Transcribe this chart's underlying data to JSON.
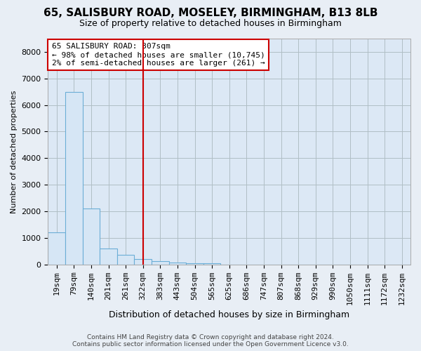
{
  "title1": "65, SALISBURY ROAD, MOSELEY, BIRMINGHAM, B13 8LB",
  "title2": "Size of property relative to detached houses in Birmingham",
  "xlabel": "Distribution of detached houses by size in Birmingham",
  "ylabel": "Number of detached properties",
  "footer1": "Contains HM Land Registry data © Crown copyright and database right 2024.",
  "footer2": "Contains public sector information licensed under the Open Government Licence v3.0.",
  "annotation_line1": "65 SALISBURY ROAD: 307sqm",
  "annotation_line2": "← 98% of detached houses are smaller (10,745)",
  "annotation_line3": "2% of semi-detached houses are larger (261) →",
  "vline_x_index": 5,
  "vline_color": "#cc0000",
  "bar_fill_color": "#d6e6f5",
  "bar_edge_color": "#6baed6",
  "categories": [
    "19sqm",
    "79sqm",
    "140sqm",
    "201sqm",
    "261sqm",
    "322sqm",
    "383sqm",
    "443sqm",
    "504sqm",
    "565sqm",
    "625sqm",
    "686sqm",
    "747sqm",
    "807sqm",
    "868sqm",
    "929sqm",
    "990sqm",
    "1050sqm",
    "1111sqm",
    "1172sqm",
    "1232sqm"
  ],
  "values": [
    1200,
    6500,
    2100,
    600,
    350,
    200,
    120,
    60,
    50,
    35,
    0,
    0,
    0,
    0,
    0,
    0,
    0,
    0,
    0,
    0,
    0
  ],
  "ylim": [
    0,
    8500
  ],
  "yticks": [
    0,
    1000,
    2000,
    3000,
    4000,
    5000,
    6000,
    7000,
    8000
  ],
  "background_color": "#e8eef5",
  "plot_bg_color": "#dce8f5",
  "grid_color": "#b0bec5",
  "title_fontsize": 11,
  "subtitle_fontsize": 9,
  "xlabel_fontsize": 9,
  "ylabel_fontsize": 8,
  "tick_fontsize": 8,
  "annotation_fontsize": 8,
  "footer_fontsize": 6.5
}
